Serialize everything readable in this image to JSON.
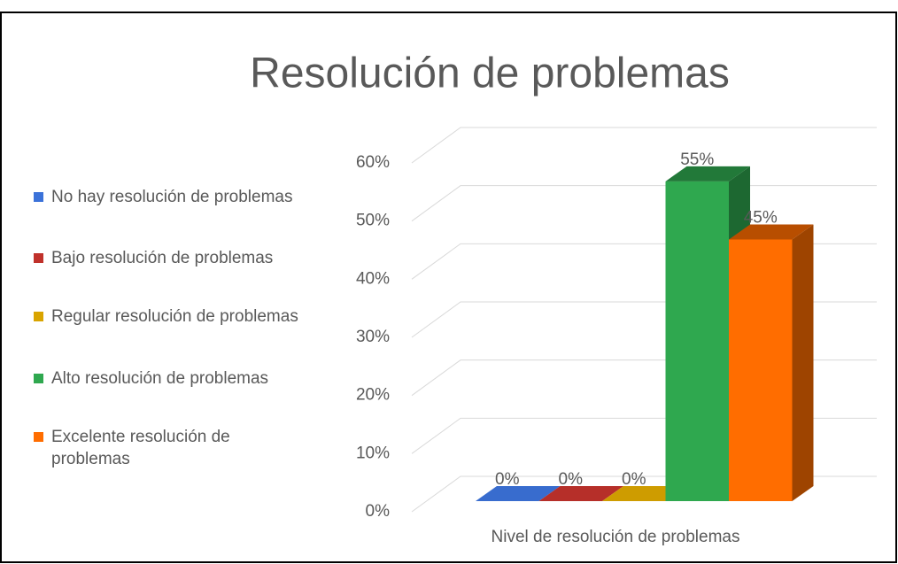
{
  "chart_data": {
    "type": "bar3d",
    "title": "Resolución de problemas",
    "categories": [
      "Nivel de resolución de problemas"
    ],
    "series": [
      {
        "name": "No hay resolución de problemas",
        "color": "#3b72d9",
        "values": [
          0
        ],
        "value_labels": [
          "0%"
        ]
      },
      {
        "name": "Bajo resolución de problemas",
        "color": "#c0312b",
        "values": [
          0
        ],
        "value_labels": [
          "0%"
        ]
      },
      {
        "name": "Regular resolución de problemas",
        "color": "#d9a400",
        "values": [
          0
        ],
        "value_labels": [
          "0%"
        ]
      },
      {
        "name": "Alto resolución de problemas",
        "color": "#2fa84f",
        "values": [
          55
        ],
        "value_labels": [
          "55%"
        ]
      },
      {
        "name": "Excelente resolución de problemas",
        "color": "#ff6d00",
        "values": [
          45
        ],
        "value_labels": [
          "45%"
        ]
      }
    ],
    "ylim": [
      0,
      60
    ],
    "yticks": [
      {
        "value": 0,
        "label": "0%"
      },
      {
        "value": 10,
        "label": "10%"
      },
      {
        "value": 20,
        "label": "20%"
      },
      {
        "value": 30,
        "label": "30%"
      },
      {
        "value": 40,
        "label": "40%"
      },
      {
        "value": 50,
        "label": "50%"
      },
      {
        "value": 60,
        "label": "60%"
      }
    ],
    "grid": true,
    "legend": "left"
  }
}
